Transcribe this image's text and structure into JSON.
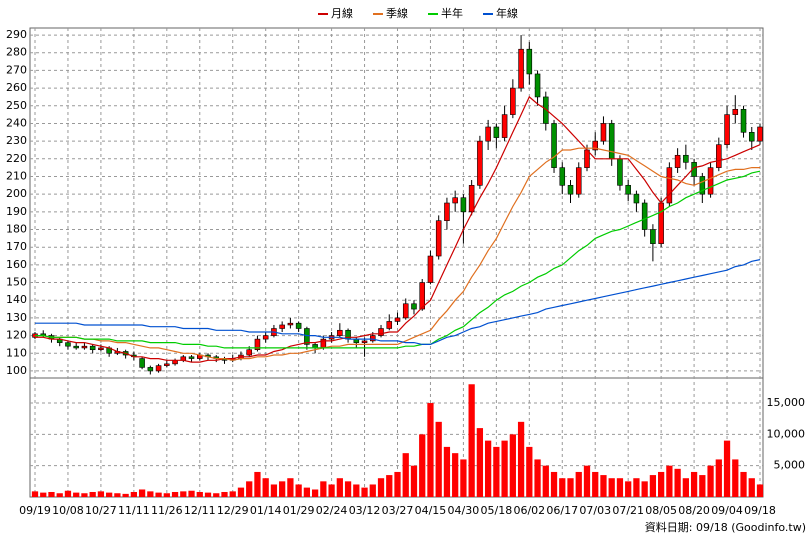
{
  "chart_data": {
    "type": "candlestick",
    "categories": [
      "09/19",
      null,
      null,
      null,
      "10/08",
      null,
      null,
      null,
      "10/27",
      null,
      null,
      null,
      "11/11",
      null,
      null,
      null,
      "11/26",
      null,
      null,
      null,
      "12/11",
      null,
      null,
      null,
      "12/29",
      null,
      null,
      null,
      "01/14",
      null,
      null,
      null,
      "01/29",
      null,
      null,
      null,
      "02/24",
      null,
      null,
      null,
      "03/12",
      null,
      null,
      null,
      "03/27",
      null,
      null,
      null,
      "04/15",
      null,
      null,
      null,
      "04/30",
      null,
      null,
      null,
      "05/18",
      null,
      null,
      null,
      "06/02",
      null,
      null,
      null,
      "06/17",
      null,
      null,
      null,
      "07/03",
      null,
      null,
      null,
      "07/21",
      null,
      null,
      null,
      "08/05",
      null,
      null,
      null,
      "08/20",
      null,
      null,
      null,
      "09/04",
      null,
      null,
      null,
      "09/18"
    ],
    "ohlc": [
      [
        119,
        122,
        118,
        121
      ],
      [
        121,
        123,
        119,
        120
      ],
      [
        120,
        121,
        116,
        118
      ],
      [
        118,
        119,
        114,
        116
      ],
      [
        116,
        117,
        112,
        114
      ],
      [
        114,
        116,
        112,
        113
      ],
      [
        113,
        116,
        112,
        114
      ],
      [
        114,
        115,
        110,
        112
      ],
      [
        112,
        115,
        111,
        113
      ],
      [
        113,
        114,
        108,
        110
      ],
      [
        110,
        113,
        109,
        111
      ],
      [
        111,
        112,
        107,
        109
      ],
      [
        109,
        111,
        106,
        108
      ],
      [
        107,
        108,
        101,
        102
      ],
      [
        102,
        103,
        98,
        100
      ],
      [
        100,
        104,
        99,
        103
      ],
      [
        103,
        106,
        102,
        104
      ],
      [
        104,
        107,
        103,
        106
      ],
      [
        106,
        109,
        105,
        108
      ],
      [
        108,
        109,
        105,
        107
      ],
      [
        107,
        110,
        106,
        109
      ],
      [
        109,
        110,
        106,
        108
      ],
      [
        108,
        109,
        105,
        107
      ],
      [
        107,
        108,
        104,
        106
      ],
      [
        106,
        109,
        105,
        107
      ],
      [
        107,
        111,
        106,
        109
      ],
      [
        109,
        114,
        108,
        112
      ],
      [
        112,
        120,
        111,
        118
      ],
      [
        118,
        122,
        116,
        120
      ],
      [
        120,
        126,
        119,
        124
      ],
      [
        124,
        128,
        122,
        126
      ],
      [
        126,
        130,
        124,
        127
      ],
      [
        127,
        128,
        122,
        124
      ],
      [
        124,
        125,
        112,
        115
      ],
      [
        115,
        116,
        110,
        113
      ],
      [
        113,
        120,
        112,
        118
      ],
      [
        118,
        122,
        116,
        120
      ],
      [
        120,
        127,
        119,
        123
      ],
      [
        123,
        124,
        116,
        118
      ],
      [
        118,
        119,
        113,
        116
      ],
      [
        116,
        119,
        108,
        117
      ],
      [
        117,
        122,
        116,
        120
      ],
      [
        120,
        126,
        119,
        124
      ],
      [
        124,
        132,
        123,
        128
      ],
      [
        128,
        133,
        126,
        130
      ],
      [
        130,
        141,
        129,
        138
      ],
      [
        138,
        140,
        132,
        135
      ],
      [
        135,
        152,
        134,
        150
      ],
      [
        150,
        168,
        149,
        165
      ],
      [
        165,
        188,
        163,
        185
      ],
      [
        185,
        198,
        180,
        195
      ],
      [
        195,
        202,
        190,
        198
      ],
      [
        198,
        200,
        172,
        190
      ],
      [
        190,
        208,
        188,
        205
      ],
      [
        205,
        233,
        203,
        230
      ],
      [
        230,
        242,
        225,
        238
      ],
      [
        238,
        240,
        226,
        232
      ],
      [
        232,
        250,
        230,
        245
      ],
      [
        245,
        265,
        243,
        260
      ],
      [
        260,
        290,
        258,
        282
      ],
      [
        282,
        286,
        262,
        268
      ],
      [
        268,
        270,
        250,
        255
      ],
      [
        255,
        258,
        236,
        240
      ],
      [
        240,
        242,
        212,
        215
      ],
      [
        215,
        218,
        200,
        205
      ],
      [
        205,
        208,
        195,
        200
      ],
      [
        200,
        218,
        198,
        215
      ],
      [
        215,
        228,
        213,
        225
      ],
      [
        225,
        235,
        222,
        230
      ],
      [
        230,
        244,
        228,
        240
      ],
      [
        240,
        242,
        216,
        220
      ],
      [
        220,
        222,
        202,
        205
      ],
      [
        205,
        208,
        196,
        200
      ],
      [
        200,
        202,
        190,
        195
      ],
      [
        195,
        197,
        176,
        180
      ],
      [
        180,
        183,
        162,
        172
      ],
      [
        172,
        198,
        170,
        195
      ],
      [
        195,
        218,
        193,
        215
      ],
      [
        215,
        226,
        212,
        222
      ],
      [
        222,
        228,
        214,
        218
      ],
      [
        218,
        220,
        205,
        210
      ],
      [
        210,
        212,
        195,
        200
      ],
      [
        200,
        218,
        198,
        215
      ],
      [
        215,
        232,
        213,
        228
      ],
      [
        228,
        250,
        226,
        245
      ],
      [
        245,
        256,
        240,
        248
      ],
      [
        248,
        250,
        232,
        235
      ],
      [
        235,
        238,
        225,
        230
      ],
      [
        230,
        240,
        228,
        238
      ]
    ],
    "volume": [
      900,
      700,
      800,
      600,
      1000,
      700,
      600,
      800,
      900,
      700,
      600,
      500,
      800,
      1200,
      900,
      700,
      600,
      800,
      900,
      1000,
      800,
      700,
      600,
      800,
      900,
      1500,
      2500,
      4000,
      3000,
      2000,
      2500,
      3000,
      2000,
      1500,
      1200,
      2500,
      2000,
      3000,
      2500,
      2000,
      1500,
      2000,
      3000,
      3500,
      4000,
      7000,
      5000,
      10000,
      15000,
      12000,
      8000,
      7000,
      6000,
      18000,
      11000,
      9000,
      8000,
      9000,
      10000,
      12000,
      8000,
      6000,
      5000,
      4000,
      3000,
      3000,
      4000,
      5000,
      4000,
      3500,
      3000,
      3000,
      2500,
      3000,
      2500,
      3500,
      4000,
      5000,
      4500,
      3000,
      4000,
      3500,
      5000,
      6000,
      9000,
      6000,
      4000,
      3000,
      2000
    ],
    "series": [
      {
        "name": "月線",
        "color": "#cc0000",
        "values": [
          119,
          119,
          118,
          118,
          117,
          116,
          116,
          115,
          114,
          113,
          111,
          110,
          108,
          108,
          107,
          107,
          106,
          106,
          106,
          105,
          105,
          106,
          106,
          107,
          107,
          108,
          108,
          109,
          109,
          111,
          112,
          114,
          115,
          116,
          116,
          117,
          117,
          118,
          119,
          119,
          120,
          121,
          121,
          122,
          122,
          127,
          131,
          136,
          140,
          150,
          160,
          170,
          180,
          189,
          198,
          206,
          215,
          225,
          235,
          245,
          255,
          251,
          248,
          244,
          240,
          235,
          230,
          225,
          220,
          220,
          220,
          220,
          220,
          214,
          208,
          201,
          195,
          200,
          205,
          210,
          215,
          216,
          218,
          219,
          220,
          222,
          224,
          226,
          228
        ]
      },
      {
        "name": "季線",
        "color": "#e07020",
        "values": [
          120,
          120,
          119,
          119,
          119,
          119,
          118,
          118,
          117,
          117,
          116,
          116,
          115,
          114,
          113,
          113,
          112,
          111,
          110,
          110,
          109,
          108,
          107,
          107,
          106,
          107,
          107,
          108,
          108,
          109,
          109,
          110,
          110,
          111,
          112,
          113,
          114,
          114,
          115,
          115,
          115,
          115,
          115,
          115,
          115,
          117,
          119,
          121,
          123,
          129,
          134,
          140,
          145,
          153,
          160,
          168,
          175,
          184,
          193,
          201,
          210,
          214,
          218,
          221,
          225,
          225,
          226,
          226,
          226,
          225,
          224,
          223,
          222,
          219,
          216,
          213,
          210,
          209,
          208,
          206,
          205,
          207,
          209,
          211,
          213,
          214,
          214,
          215,
          215
        ]
      },
      {
        "name": "半年",
        "color": "#00cc00",
        "values": [
          120,
          120,
          119,
          119,
          119,
          119,
          118,
          118,
          118,
          118,
          117,
          117,
          117,
          117,
          116,
          116,
          116,
          116,
          115,
          115,
          115,
          114,
          114,
          113,
          113,
          113,
          113,
          113,
          113,
          113,
          113,
          113,
          113,
          113,
          113,
          113,
          113,
          113,
          113,
          113,
          113,
          113,
          113,
          113,
          113,
          114,
          114,
          115,
          115,
          118,
          120,
          123,
          125,
          129,
          133,
          136,
          140,
          143,
          145,
          148,
          150,
          153,
          155,
          158,
          160,
          164,
          168,
          171,
          175,
          177,
          179,
          180,
          182,
          184,
          186,
          188,
          190,
          193,
          195,
          198,
          200,
          202,
          204,
          206,
          208,
          209,
          210,
          212,
          213
        ]
      },
      {
        "name": "年線",
        "color": "#0050d0",
        "values": [
          127,
          127,
          127,
          127,
          127,
          127,
          126,
          126,
          126,
          126,
          126,
          126,
          126,
          126,
          125,
          125,
          125,
          125,
          124,
          124,
          124,
          124,
          123,
          123,
          123,
          123,
          122,
          122,
          122,
          122,
          121,
          121,
          121,
          120,
          120,
          119,
          119,
          119,
          118,
          118,
          118,
          118,
          117,
          117,
          117,
          116,
          116,
          115,
          115,
          117,
          119,
          120,
          122,
          124,
          125,
          127,
          128,
          129,
          130,
          131,
          132,
          133,
          135,
          136,
          137,
          138,
          139,
          140,
          141,
          142,
          143,
          144,
          145,
          146,
          147,
          148,
          149,
          150,
          151,
          152,
          153,
          154,
          155,
          156,
          157,
          159,
          160,
          162,
          163
        ]
      }
    ],
    "ylim": [
      96,
      294
    ],
    "yticks": [
      100,
      110,
      120,
      130,
      140,
      150,
      160,
      170,
      180,
      190,
      200,
      210,
      220,
      230,
      240,
      250,
      260,
      270,
      280,
      290
    ],
    "y2lim": [
      0,
      19000
    ],
    "y2ticks": [
      {
        "value": 5000,
        "label": "5,000"
      },
      {
        "value": 10000,
        "label": "10,000"
      },
      {
        "value": 15000,
        "label": "15,000"
      }
    ],
    "up_color": "#ff0000",
    "down_color": "#009000",
    "volume_color": "#ff0000",
    "grid": true,
    "source": "資料日期: 09/18 (Goodinfo.tw)"
  }
}
